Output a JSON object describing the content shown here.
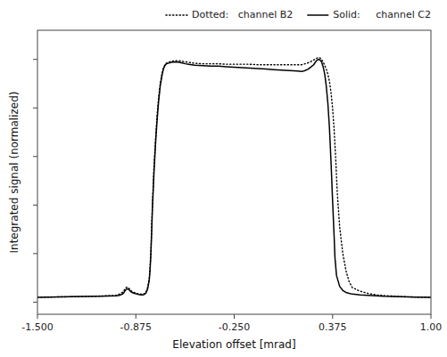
{
  "chart_data": {
    "type": "line",
    "xlabel": "Elevation offset [mrad]",
    "ylabel": "Integrated signal (normalized)",
    "xlim": [
      -1.5,
      1.0
    ],
    "xticks": [
      {
        "value": -1.5,
        "label": "-1.500"
      },
      -0.875,
      {
        "value": -0.25,
        "label": "-0.250"
      },
      0.375,
      {
        "value": 1.0,
        "label": "1.00"
      }
    ],
    "ylim": [
      -0.05,
      1.12
    ],
    "yticks": [
      0,
      0.2,
      0.4,
      0.6,
      0.8,
      1.0
    ],
    "tick_labels": "x",
    "grid": false,
    "legend": "upper right",
    "series": [
      {
        "name": "Dotted:   channel B2",
        "color": "#000000",
        "line_style": "dotted",
        "x": [
          -1.5,
          -1.3,
          -1.1,
          -1.0,
          -0.98,
          -0.96,
          -0.95,
          -0.94,
          -0.93,
          -0.92,
          -0.91,
          -0.9,
          -0.88,
          -0.86,
          -0.84,
          -0.83,
          -0.82,
          -0.81,
          -0.8,
          -0.79,
          -0.785,
          -0.78,
          -0.775,
          -0.77,
          -0.76,
          -0.75,
          -0.74,
          -0.73,
          -0.72,
          -0.71,
          -0.7,
          -0.69,
          -0.68,
          -0.65,
          -0.62,
          -0.6,
          -0.58,
          -0.56,
          -0.54,
          -0.52,
          -0.5,
          -0.45,
          -0.4,
          -0.35,
          -0.3,
          -0.25,
          -0.2,
          -0.15,
          -0.1,
          -0.05,
          0.0,
          0.05,
          0.1,
          0.15,
          0.18,
          0.2,
          0.22,
          0.24,
          0.255,
          0.265,
          0.275,
          0.285,
          0.295,
          0.305,
          0.315,
          0.325,
          0.335,
          0.345,
          0.355,
          0.365,
          0.375,
          0.385,
          0.395,
          0.405,
          0.42,
          0.44,
          0.46,
          0.48,
          0.5,
          0.55,
          0.6,
          0.65,
          0.7,
          0.75,
          0.8,
          0.9,
          1.0
        ],
        "values": [
          0.02,
          0.022,
          0.025,
          0.028,
          0.033,
          0.04,
          0.048,
          0.058,
          0.062,
          0.058,
          0.05,
          0.044,
          0.038,
          0.035,
          0.033,
          0.033,
          0.035,
          0.042,
          0.06,
          0.095,
          0.14,
          0.2,
          0.295,
          0.4,
          0.555,
          0.67,
          0.77,
          0.845,
          0.9,
          0.938,
          0.965,
          0.978,
          0.985,
          0.992,
          0.995,
          0.994,
          0.992,
          0.99,
          0.988,
          0.986,
          0.984,
          0.982,
          0.982,
          0.982,
          0.98,
          0.98,
          0.98,
          0.98,
          0.978,
          0.978,
          0.978,
          0.978,
          0.978,
          0.978,
          0.978,
          0.982,
          0.986,
          0.992,
          0.998,
          1.0,
          1.005,
          1.008,
          1.006,
          1.0,
          0.99,
          0.975,
          0.96,
          0.94,
          0.91,
          0.865,
          0.8,
          0.71,
          0.59,
          0.45,
          0.31,
          0.2,
          0.13,
          0.085,
          0.06,
          0.045,
          0.036,
          0.03,
          0.027,
          0.025,
          0.023,
          0.021,
          0.02
        ]
      },
      {
        "name": "Solid:     channel C2",
        "color": "#000000",
        "line_style": "solid",
        "x": [
          -1.5,
          -1.3,
          -1.1,
          -1.0,
          -0.98,
          -0.96,
          -0.95,
          -0.94,
          -0.93,
          -0.92,
          -0.91,
          -0.9,
          -0.88,
          -0.86,
          -0.84,
          -0.83,
          -0.82,
          -0.81,
          -0.8,
          -0.79,
          -0.785,
          -0.78,
          -0.775,
          -0.77,
          -0.76,
          -0.75,
          -0.74,
          -0.73,
          -0.72,
          -0.71,
          -0.7,
          -0.69,
          -0.68,
          -0.65,
          -0.62,
          -0.6,
          -0.58,
          -0.56,
          -0.54,
          -0.52,
          -0.5,
          -0.45,
          -0.4,
          -0.35,
          -0.3,
          -0.25,
          -0.2,
          -0.15,
          -0.1,
          -0.05,
          0.0,
          0.05,
          0.1,
          0.15,
          0.18,
          0.2,
          0.22,
          0.24,
          0.255,
          0.265,
          0.275,
          0.285,
          0.295,
          0.305,
          0.315,
          0.325,
          0.335,
          0.345,
          0.355,
          0.365,
          0.375,
          0.385,
          0.39,
          0.4,
          0.42,
          0.44,
          0.46,
          0.48,
          0.5,
          0.55,
          0.6,
          0.65,
          0.7,
          0.75,
          0.8,
          0.9,
          1.0
        ],
        "values": [
          0.02,
          0.022,
          0.024,
          0.026,
          0.028,
          0.033,
          0.04,
          0.05,
          0.055,
          0.052,
          0.045,
          0.04,
          0.035,
          0.032,
          0.03,
          0.03,
          0.032,
          0.038,
          0.055,
          0.09,
          0.13,
          0.19,
          0.28,
          0.38,
          0.53,
          0.65,
          0.75,
          0.83,
          0.89,
          0.93,
          0.96,
          0.975,
          0.982,
          0.988,
          0.99,
          0.988,
          0.985,
          0.982,
          0.98,
          0.978,
          0.976,
          0.974,
          0.972,
          0.972,
          0.97,
          0.968,
          0.966,
          0.964,
          0.962,
          0.96,
          0.958,
          0.956,
          0.954,
          0.952,
          0.95,
          0.954,
          0.96,
          0.97,
          0.978,
          0.988,
          0.996,
          1.0,
          0.998,
          0.99,
          0.97,
          0.94,
          0.89,
          0.82,
          0.72,
          0.58,
          0.42,
          0.27,
          0.185,
          0.11,
          0.065,
          0.048,
          0.04,
          0.036,
          0.033,
          0.03,
          0.028,
          0.026,
          0.024,
          0.023,
          0.022,
          0.021,
          0.02
        ]
      }
    ]
  }
}
